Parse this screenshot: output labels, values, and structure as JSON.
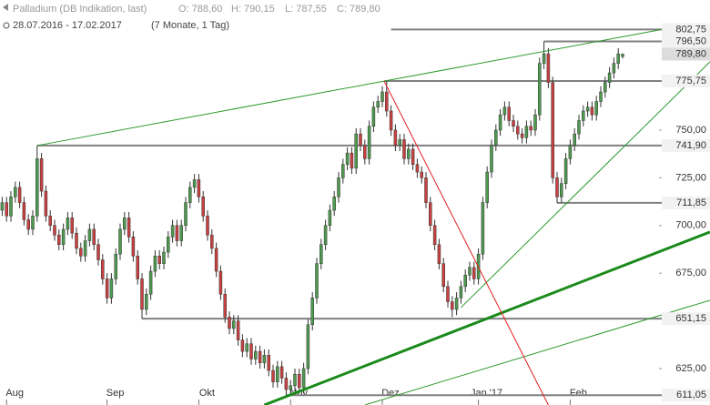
{
  "chart_data": {
    "type": "candlestick",
    "title": "Palladium (DB Indikation, last)",
    "ohlc_labels": [
      "O: 788,60",
      "H: 790,15",
      "L: 787,55",
      "C: 789,80"
    ],
    "date_range": "28.07.2016 - 17.02.2017",
    "period": "(7 Monate, 1 Tag)",
    "up_color": "#4e9a4e",
    "down_color": "#c84040",
    "xlim": [
      -0.5,
      162
    ],
    "ylim": [
      605.9,
      818.2
    ],
    "xticks": [
      {
        "value": 1,
        "label": "Aug"
      },
      {
        "value": 24,
        "label": "Sep"
      },
      {
        "value": 45,
        "label": "Okt"
      },
      {
        "value": 66,
        "label": "Nov"
      },
      {
        "value": 87,
        "label": "Dez"
      },
      {
        "value": 109,
        "label": "Jan '17"
      },
      {
        "value": 130,
        "label": "Feb"
      }
    ],
    "yticks": [
      {
        "value": 625,
        "label": "625,00"
      },
      {
        "value": 675,
        "label": "675,00"
      },
      {
        "value": 700,
        "label": "700,00"
      },
      {
        "value": 725,
        "label": "725,00"
      },
      {
        "value": 750,
        "label": "750,00"
      }
    ],
    "open": [
      708,
      712,
      705,
      715,
      720,
      712,
      703,
      698,
      705,
      735,
      718,
      705,
      700,
      695,
      690,
      698,
      704,
      696,
      688,
      684,
      692,
      698,
      690,
      682,
      672,
      662,
      672,
      685,
      698,
      704,
      694,
      684,
      672,
      656,
      664,
      676,
      684,
      680,
      686,
      694,
      700,
      692,
      700,
      712,
      720,
      724,
      715,
      705,
      695,
      688,
      676,
      664,
      652,
      646,
      650,
      640,
      634,
      638,
      630,
      634,
      628,
      632,
      624,
      618,
      626,
      620,
      614,
      616,
      622,
      615,
      625,
      648,
      662,
      680,
      690,
      700,
      708,
      715,
      725,
      732,
      738,
      730,
      748,
      742,
      735,
      752,
      762,
      765,
      770,
      760,
      750,
      742,
      745,
      735,
      740,
      732,
      728,
      725,
      712,
      700,
      690,
      680,
      668,
      660,
      656,
      662,
      668,
      674,
      678,
      672,
      685,
      712,
      728,
      742,
      750,
      758,
      762,
      755,
      752,
      748,
      746,
      752,
      750,
      758,
      785,
      790,
      775,
      725,
      715,
      722,
      735,
      742,
      748,
      755,
      760,
      762,
      758,
      765,
      770,
      775,
      780,
      785,
      788.6
    ],
    "high": [
      715,
      715,
      718,
      723,
      723,
      715,
      706,
      708,
      741.9,
      738,
      721,
      708,
      703,
      698,
      701,
      707,
      707,
      699,
      691,
      695,
      701,
      701,
      693,
      685,
      675,
      675,
      688,
      701,
      707,
      707,
      697,
      687,
      675,
      667,
      679,
      687,
      687,
      689,
      697,
      703,
      703,
      703,
      715,
      723,
      727,
      727,
      718,
      708,
      698,
      691,
      679,
      667,
      655,
      653,
      653,
      643,
      641,
      641,
      637,
      637,
      635,
      635,
      627,
      629,
      629,
      623,
      619,
      625,
      625,
      628,
      651,
      665,
      683,
      693,
      703,
      711,
      718,
      728,
      735,
      741,
      741,
      751,
      751,
      745,
      755,
      765,
      768,
      773,
      775.75,
      763,
      753,
      748,
      748,
      743,
      743,
      735,
      731,
      728,
      715,
      703,
      693,
      683,
      671,
      663,
      665,
      671,
      677,
      681,
      681,
      688,
      715,
      731,
      745,
      753,
      761,
      765,
      765,
      758,
      755,
      751,
      755,
      755,
      761,
      788,
      796.5,
      793,
      778,
      728,
      725,
      738,
      745,
      751,
      758,
      763,
      765,
      765,
      768,
      773,
      778,
      783,
      788,
      793,
      790.15
    ],
    "low": [
      705,
      702,
      702,
      712,
      709,
      700,
      695,
      695,
      702,
      715,
      702,
      697,
      692,
      687,
      687,
      695,
      693,
      685,
      681,
      681,
      689,
      687,
      679,
      669,
      659,
      659,
      669,
      682,
      695,
      691,
      681,
      669,
      651.15,
      653,
      661,
      673,
      677,
      677,
      683,
      691,
      689,
      689,
      697,
      709,
      717,
      712,
      702,
      692,
      685,
      673,
      661,
      649,
      643,
      643,
      637,
      631,
      631,
      627,
      627,
      625,
      625,
      621,
      615,
      615,
      617,
      611.05,
      612,
      613,
      612,
      612,
      622,
      645,
      659,
      677,
      687,
      697,
      705,
      712,
      722,
      729,
      727,
      727,
      739,
      732,
      732,
      749,
      759,
      762,
      757,
      747,
      739,
      739,
      732,
      732,
      729,
      725,
      722,
      709,
      697,
      687,
      677,
      665,
      657,
      652,
      653,
      659,
      665,
      671,
      669,
      669,
      682,
      709,
      725,
      739,
      747,
      755,
      752,
      749,
      745,
      743,
      743,
      747,
      747,
      755,
      782,
      772,
      722,
      711.85,
      712,
      719,
      732,
      739,
      745,
      752,
      757,
      755,
      755,
      762,
      767,
      772,
      777,
      782,
      787.55
    ],
    "close": [
      712,
      705,
      715,
      720,
      712,
      703,
      698,
      705,
      735,
      718,
      705,
      700,
      695,
      690,
      698,
      704,
      696,
      688,
      684,
      692,
      698,
      690,
      682,
      672,
      662,
      672,
      685,
      698,
      704,
      694,
      684,
      672,
      656,
      664,
      676,
      684,
      680,
      686,
      694,
      700,
      692,
      700,
      712,
      720,
      724,
      715,
      705,
      695,
      688,
      676,
      664,
      652,
      646,
      650,
      640,
      634,
      638,
      630,
      634,
      628,
      632,
      624,
      618,
      626,
      620,
      614,
      616,
      622,
      615,
      625,
      648,
      662,
      680,
      690,
      700,
      708,
      715,
      725,
      732,
      738,
      730,
      748,
      742,
      735,
      752,
      762,
      765,
      770,
      760,
      750,
      742,
      745,
      735,
      740,
      732,
      728,
      725,
      712,
      700,
      690,
      680,
      668,
      660,
      656,
      662,
      668,
      674,
      678,
      672,
      685,
      712,
      728,
      742,
      750,
      758,
      762,
      755,
      752,
      748,
      746,
      752,
      750,
      758,
      785,
      790,
      775,
      725,
      715,
      722,
      735,
      742,
      748,
      755,
      760,
      762,
      758,
      765,
      770,
      775,
      780,
      785,
      790,
      789.8
    ],
    "levels": [
      {
        "value": 802.75,
        "label": "802,75",
        "from": 89
      },
      {
        "value": 796.5,
        "label": "796,50",
        "from": 124
      },
      {
        "value": 775.75,
        "label": "775,75",
        "from": 87.5
      },
      {
        "value": 741.9,
        "label": "741,90",
        "from": 8
      },
      {
        "value": 711.85,
        "label": "711,85",
        "from": 127
      },
      {
        "value": 651.15,
        "label": "651,15",
        "from": 32
      },
      {
        "value": 611.05,
        "label": "611,05",
        "from": 65
      }
    ],
    "last_price": {
      "value": 789.8,
      "label": "789,80"
    },
    "trendlines": [
      {
        "color": "#2e9a2e",
        "width": 1,
        "points": [
          [
            8,
            741.9
          ],
          [
            151,
            802.75
          ]
        ]
      },
      {
        "color": "#2e9a2e",
        "width": 1,
        "points": [
          [
            105,
            657
          ],
          [
            162,
            785.8
          ]
        ]
      },
      {
        "color": "#1a8a1a",
        "width": 3,
        "points": [
          [
            60,
            605.9
          ],
          [
            162,
            696.6
          ]
        ]
      },
      {
        "color": "#2e9a2e",
        "width": 1,
        "points": [
          [
            83,
            605.9
          ],
          [
            162,
            660.8
          ]
        ]
      },
      {
        "color": "#e02020",
        "width": 1,
        "points": [
          [
            87.4,
            775.75
          ],
          [
            125,
            605.9
          ]
        ]
      }
    ]
  }
}
